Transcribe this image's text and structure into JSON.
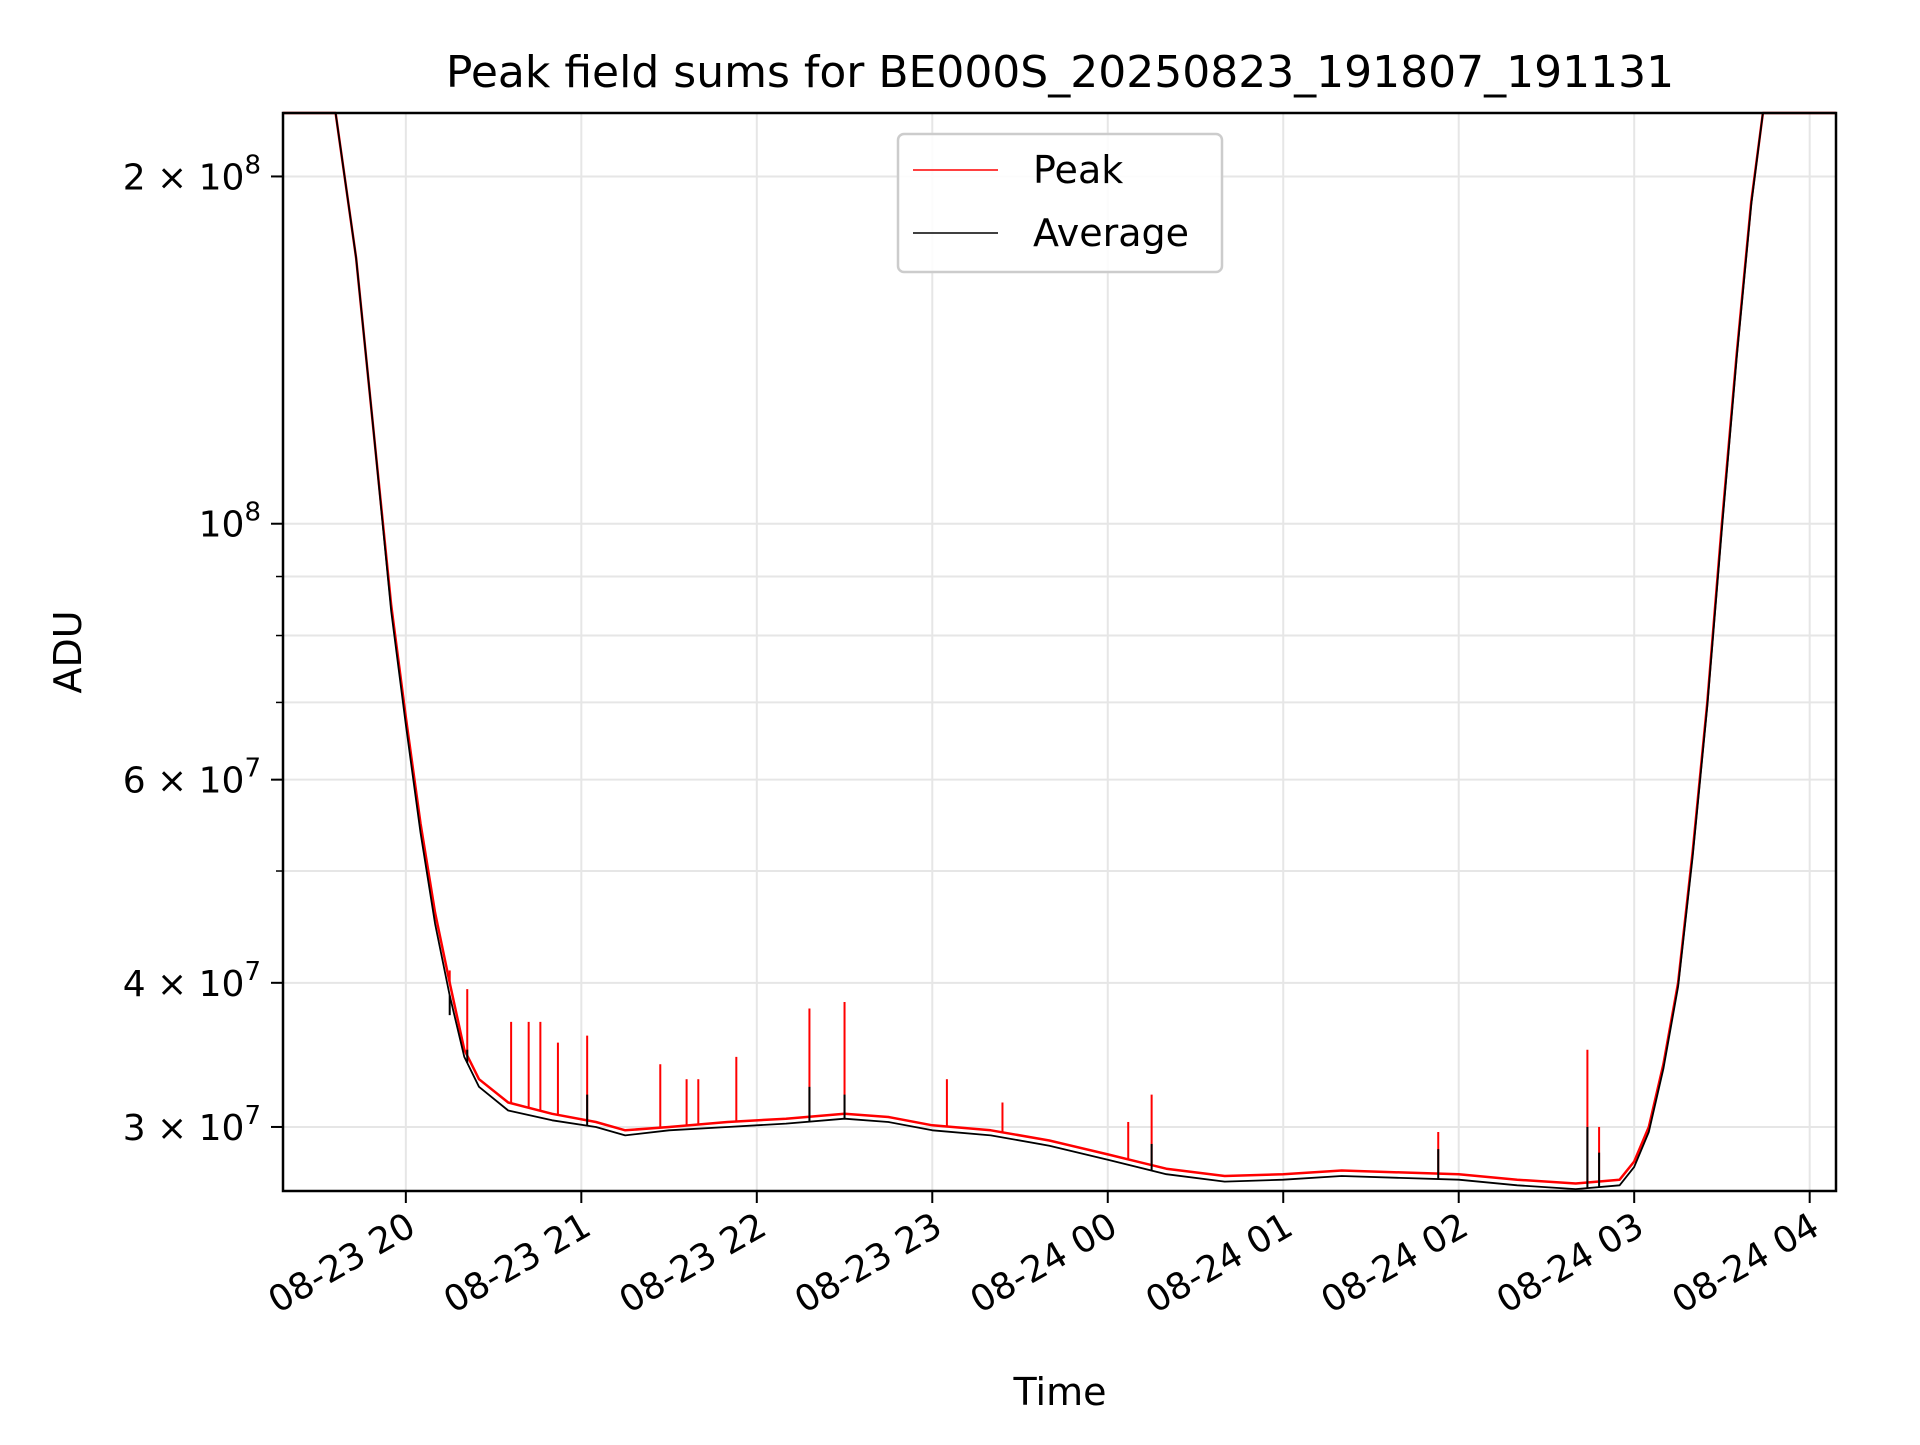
{
  "chart_data": {
    "type": "line",
    "title": "Peak field sums for BE000S_20250823_191807_191131",
    "xlabel": "Time",
    "ylabel": "ADU",
    "yscale": "log",
    "xlim": [
      "2025-08-23 19:18",
      "2025-08-24 04:09"
    ],
    "ylim": [
      26400000,
      227000000
    ],
    "grid": true,
    "legend_position": "top-center",
    "x_ticks": [
      {
        "label": "08-23 20",
        "value": "2025-08-23 20:00"
      },
      {
        "label": "08-23 21",
        "value": "2025-08-23 21:00"
      },
      {
        "label": "08-23 22",
        "value": "2025-08-23 22:00"
      },
      {
        "label": "08-23 23",
        "value": "2025-08-23 23:00"
      },
      {
        "label": "08-24 00",
        "value": "2025-08-24 00:00"
      },
      {
        "label": "08-24 01",
        "value": "2025-08-24 01:00"
      },
      {
        "label": "08-24 02",
        "value": "2025-08-24 02:00"
      },
      {
        "label": "08-24 03",
        "value": "2025-08-24 03:00"
      },
      {
        "label": "08-24 04",
        "value": "2025-08-24 04:00"
      }
    ],
    "y_ticks": [
      {
        "mantissa": "3 × 10",
        "exp": "7",
        "value": 30000000
      },
      {
        "mantissa": "4 × 10",
        "exp": "7",
        "value": 40000000
      },
      {
        "mantissa": "6 × 10",
        "exp": "7",
        "value": 60000000
      },
      {
        "mantissa": "10",
        "exp": "8",
        "value": 100000000
      },
      {
        "mantissa": "2 × 10",
        "exp": "8",
        "value": 200000000
      }
    ],
    "series": [
      {
        "name": "Peak",
        "color": "#ff0000",
        "points": [
          [
            "2025-08-23 19:18",
            227000000
          ],
          [
            "2025-08-23 19:36",
            227000000
          ],
          [
            "2025-08-23 19:43",
            170000000
          ],
          [
            "2025-08-23 19:49",
            120000000
          ],
          [
            "2025-08-23 19:55",
            85000000
          ],
          [
            "2025-08-23 20:00",
            68000000
          ],
          [
            "2025-08-23 20:05",
            55000000
          ],
          [
            "2025-08-23 20:10",
            46000000
          ],
          [
            "2025-08-23 20:15",
            40000000
          ],
          [
            "2025-08-23 20:20",
            35000000
          ],
          [
            "2025-08-23 20:25",
            33000000
          ],
          [
            "2025-08-23 20:35",
            31500000
          ],
          [
            "2025-08-23 20:50",
            30800000
          ],
          [
            "2025-08-23 21:05",
            30300000
          ],
          [
            "2025-08-23 21:15",
            29800000
          ],
          [
            "2025-08-23 21:30",
            30000000
          ],
          [
            "2025-08-23 21:50",
            30300000
          ],
          [
            "2025-08-23 22:10",
            30500000
          ],
          [
            "2025-08-23 22:30",
            30800000
          ],
          [
            "2025-08-23 22:45",
            30600000
          ],
          [
            "2025-08-23 23:00",
            30100000
          ],
          [
            "2025-08-23 23:20",
            29800000
          ],
          [
            "2025-08-23 23:40",
            29200000
          ],
          [
            "2025-08-24 00:00",
            28400000
          ],
          [
            "2025-08-24 00:20",
            27600000
          ],
          [
            "2025-08-24 00:40",
            27200000
          ],
          [
            "2025-08-24 01:00",
            27300000
          ],
          [
            "2025-08-24 01:20",
            27500000
          ],
          [
            "2025-08-24 01:40",
            27400000
          ],
          [
            "2025-08-24 02:00",
            27300000
          ],
          [
            "2025-08-24 02:20",
            27000000
          ],
          [
            "2025-08-24 02:40",
            26800000
          ],
          [
            "2025-08-24 02:55",
            27000000
          ],
          [
            "2025-08-24 03:00",
            28000000
          ],
          [
            "2025-08-24 03:05",
            30000000
          ],
          [
            "2025-08-24 03:10",
            34000000
          ],
          [
            "2025-08-24 03:15",
            40000000
          ],
          [
            "2025-08-24 03:20",
            52000000
          ],
          [
            "2025-08-24 03:25",
            70000000
          ],
          [
            "2025-08-24 03:30",
            100000000
          ],
          [
            "2025-08-24 03:35",
            140000000
          ],
          [
            "2025-08-24 03:40",
            190000000
          ],
          [
            "2025-08-24 03:44",
            227000000
          ],
          [
            "2025-08-24 04:09",
            227000000
          ]
        ],
        "spikes": [
          [
            "2025-08-23 20:15",
            41000000
          ],
          [
            "2025-08-23 20:21",
            39500000
          ],
          [
            "2025-08-23 20:36",
            37000000
          ],
          [
            "2025-08-23 20:42",
            37000000
          ],
          [
            "2025-08-23 20:46",
            37000000
          ],
          [
            "2025-08-23 20:52",
            35500000
          ],
          [
            "2025-08-23 21:02",
            36000000
          ],
          [
            "2025-08-23 21:27",
            34000000
          ],
          [
            "2025-08-23 21:36",
            33000000
          ],
          [
            "2025-08-23 21:40",
            33000000
          ],
          [
            "2025-08-23 21:53",
            34500000
          ],
          [
            "2025-08-23 22:18",
            38000000
          ],
          [
            "2025-08-23 22:30",
            38500000
          ],
          [
            "2025-08-23 23:05",
            33000000
          ],
          [
            "2025-08-23 23:24",
            31500000
          ],
          [
            "2025-08-24 00:07",
            30300000
          ],
          [
            "2025-08-24 00:15",
            32000000
          ],
          [
            "2025-08-24 01:53",
            29700000
          ],
          [
            "2025-08-24 02:44",
            35000000
          ],
          [
            "2025-08-24 02:48",
            30000000
          ]
        ]
      },
      {
        "name": "Average",
        "color": "#000000",
        "points": [
          [
            "2025-08-23 19:18",
            227000000
          ],
          [
            "2025-08-23 19:36",
            227000000
          ],
          [
            "2025-08-23 19:43",
            170000000
          ],
          [
            "2025-08-23 19:49",
            120000000
          ],
          [
            "2025-08-23 19:55",
            84000000
          ],
          [
            "2025-08-23 20:00",
            67000000
          ],
          [
            "2025-08-23 20:05",
            54000000
          ],
          [
            "2025-08-23 20:10",
            45000000
          ],
          [
            "2025-08-23 20:15",
            39000000
          ],
          [
            "2025-08-23 20:20",
            34500000
          ],
          [
            "2025-08-23 20:25",
            32500000
          ],
          [
            "2025-08-23 20:35",
            31000000
          ],
          [
            "2025-08-23 20:50",
            30400000
          ],
          [
            "2025-08-23 21:05",
            30000000
          ],
          [
            "2025-08-23 21:15",
            29500000
          ],
          [
            "2025-08-23 21:30",
            29800000
          ],
          [
            "2025-08-23 21:50",
            30000000
          ],
          [
            "2025-08-23 22:10",
            30200000
          ],
          [
            "2025-08-23 22:30",
            30500000
          ],
          [
            "2025-08-23 22:45",
            30300000
          ],
          [
            "2025-08-23 23:00",
            29800000
          ],
          [
            "2025-08-23 23:20",
            29500000
          ],
          [
            "2025-08-23 23:40",
            28900000
          ],
          [
            "2025-08-24 00:00",
            28100000
          ],
          [
            "2025-08-24 00:20",
            27300000
          ],
          [
            "2025-08-24 00:40",
            26900000
          ],
          [
            "2025-08-24 01:00",
            27000000
          ],
          [
            "2025-08-24 01:20",
            27200000
          ],
          [
            "2025-08-24 01:40",
            27100000
          ],
          [
            "2025-08-24 02:00",
            27000000
          ],
          [
            "2025-08-24 02:20",
            26700000
          ],
          [
            "2025-08-24 02:40",
            26500000
          ],
          [
            "2025-08-24 02:55",
            26700000
          ],
          [
            "2025-08-24 03:00",
            27700000
          ],
          [
            "2025-08-24 03:05",
            29700000
          ],
          [
            "2025-08-24 03:10",
            33700000
          ],
          [
            "2025-08-24 03:15",
            39700000
          ],
          [
            "2025-08-24 03:20",
            51500000
          ],
          [
            "2025-08-24 03:25",
            69500000
          ],
          [
            "2025-08-24 03:30",
            99000000
          ],
          [
            "2025-08-24 03:35",
            139000000
          ],
          [
            "2025-08-24 03:40",
            189000000
          ],
          [
            "2025-08-24 03:44",
            227000000
          ],
          [
            "2025-08-24 04:09",
            227000000
          ]
        ],
        "spikes": [
          [
            "2025-08-23 20:15",
            37500000
          ],
          [
            "2025-08-23 20:21",
            35000000
          ],
          [
            "2025-08-23 21:02",
            32000000
          ],
          [
            "2025-08-23 22:18",
            32500000
          ],
          [
            "2025-08-23 22:30",
            32000000
          ],
          [
            "2025-08-24 00:15",
            29000000
          ],
          [
            "2025-08-24 01:53",
            28700000
          ],
          [
            "2025-08-24 02:44",
            30000000
          ],
          [
            "2025-08-24 02:48",
            28500000
          ]
        ]
      }
    ]
  }
}
